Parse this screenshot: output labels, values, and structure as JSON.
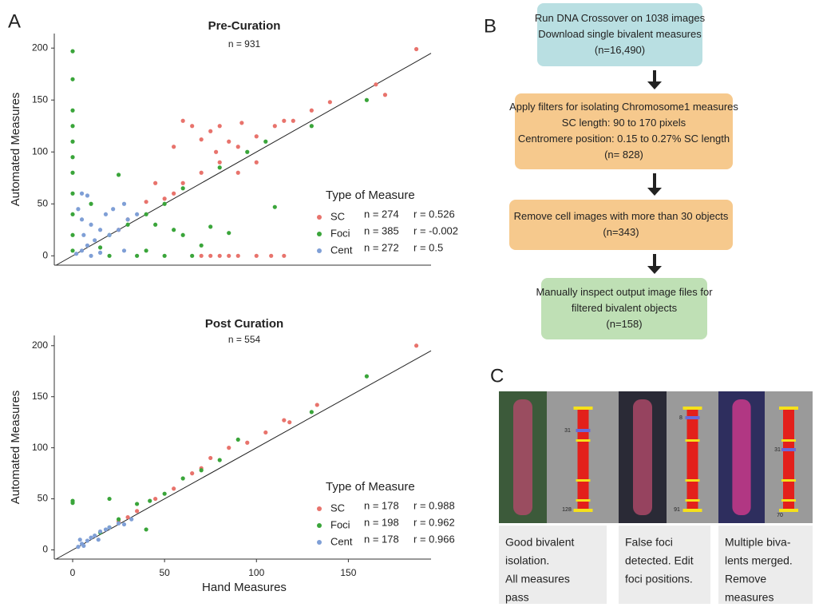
{
  "panel_labels": [
    "A",
    "B",
    "C"
  ],
  "chart_data": [
    {
      "type": "scatter",
      "title": "Pre-Curation",
      "subtitle": "n = 931",
      "ylabel": "Automated Measures",
      "xlim": [
        -10,
        195
      ],
      "ylim": [
        -9,
        214
      ],
      "yticks": [
        0,
        50,
        100,
        150,
        200
      ],
      "legend_title": "Type of Measure",
      "series": [
        {
          "name": "SC",
          "color": "#e8736c",
          "n_text": "n = 274",
          "r_text": "r = 0.526",
          "x": [
            187,
            165,
            170,
            140,
            130,
            120,
            115,
            110,
            100,
            90,
            80,
            70,
            60,
            55,
            50,
            65,
            75,
            60,
            80,
            92,
            70,
            78,
            55,
            85,
            90,
            100,
            75,
            80,
            85,
            90,
            100,
            108,
            115,
            70,
            45,
            40,
            25,
            30
          ],
          "values": [
            199,
            165,
            155,
            148,
            140,
            130,
            130,
            125,
            115,
            105,
            90,
            80,
            70,
            60,
            55,
            125,
            120,
            130,
            125,
            128,
            112,
            100,
            105,
            110,
            80,
            90,
            0,
            0,
            0,
            0,
            0,
            0,
            0,
            0,
            70,
            52,
            25,
            35
          ]
        },
        {
          "name": "Foci",
          "color": "#3aa53a",
          "n_text": "n = 385",
          "r_text": "r = -0.002",
          "x": [
            0,
            0,
            0,
            0,
            0,
            0,
            0,
            0,
            0,
            0,
            0,
            160,
            130,
            105,
            95,
            80,
            60,
            50,
            40,
            30,
            20,
            25,
            45,
            40,
            55,
            60,
            70,
            75,
            85,
            50,
            35,
            20,
            65,
            110,
            10,
            15
          ],
          "values": [
            197,
            170,
            140,
            125,
            110,
            95,
            80,
            60,
            40,
            20,
            5,
            150,
            125,
            110,
            100,
            85,
            65,
            50,
            40,
            30,
            20,
            78,
            30,
            5,
            25,
            20,
            10,
            28,
            22,
            0,
            0,
            0,
            0,
            47,
            50,
            8
          ]
        },
        {
          "name": "Cent",
          "color": "#7f9fd6",
          "n_text": "n = 272",
          "r_text": "r = 0.5",
          "x": [
            5,
            8,
            3,
            5,
            10,
            15,
            20,
            25,
            30,
            12,
            8,
            5,
            18,
            22,
            28,
            35,
            2,
            10,
            15,
            6,
            28
          ],
          "values": [
            60,
            58,
            45,
            35,
            30,
            25,
            20,
            25,
            35,
            15,
            10,
            5,
            40,
            45,
            50,
            40,
            2,
            0,
            3,
            20,
            5
          ]
        }
      ]
    },
    {
      "type": "scatter",
      "title": "Post Curation",
      "subtitle": "n = 554",
      "ylabel": "Automated Measures",
      "xlabel": "Hand Measures",
      "xlim": [
        -10,
        195
      ],
      "ylim": [
        -9,
        210
      ],
      "xticks": [
        0,
        50,
        100,
        150
      ],
      "yticks": [
        0,
        50,
        100,
        150,
        200
      ],
      "legend_title": "Type of Measure",
      "series": [
        {
          "name": "SC",
          "color": "#e8736c",
          "n_text": "n = 178",
          "r_text": "r = 0.988",
          "x": [
            187,
            133,
            115,
            118,
            105,
            95,
            85,
            75,
            65,
            55,
            45,
            35,
            25,
            30,
            70
          ],
          "values": [
            200,
            142,
            127,
            125,
            115,
            105,
            100,
            90,
            75,
            60,
            50,
            38,
            28,
            32,
            80
          ]
        },
        {
          "name": "Foci",
          "color": "#3aa53a",
          "n_text": "n = 198",
          "r_text": "r = 0.962",
          "x": [
            0,
            0,
            160,
            130,
            90,
            80,
            70,
            60,
            50,
            42,
            35,
            25,
            20,
            15,
            40,
            20
          ],
          "values": [
            48,
            46,
            170,
            135,
            108,
            88,
            78,
            70,
            55,
            48,
            45,
            30,
            22,
            17,
            20,
            50
          ]
        },
        {
          "name": "Cent",
          "color": "#7f9fd6",
          "n_text": "n = 178",
          "r_text": "r = 0.966",
          "x": [
            3,
            5,
            8,
            10,
            12,
            15,
            18,
            20,
            25,
            28,
            32,
            6,
            14,
            4
          ],
          "values": [
            3,
            6,
            9,
            12,
            14,
            18,
            20,
            22,
            26,
            25,
            30,
            4,
            10,
            10
          ]
        }
      ]
    }
  ],
  "flowchart": {
    "steps": [
      {
        "color": "#b9dfe2",
        "lines": [
          "Run DNA Crossover on 1038 images",
          "Download single bivalent measures",
          "(n=16,490)"
        ]
      },
      {
        "color": "#f6c98d",
        "lines": [
          "Apply filters for isolating Chromosome1 measures",
          "SC length: 90 to 170 pixels",
          "Centromere position: 0.15 to 0.27% SC length",
          "(n= 828)"
        ]
      },
      {
        "color": "#f6c98d",
        "lines": [
          "Remove cell images with more than 30 objects",
          "(n=343)"
        ]
      },
      {
        "color": "#bfe0b5",
        "lines": [
          "Manually inspect output image files for",
          "filtered bivalent objects",
          "(n=158)"
        ]
      }
    ]
  },
  "examples": [
    {
      "labels": [
        "31",
        "128"
      ],
      "caption": [
        "Good bivalent",
        "isolation.",
        "All measures",
        "pass"
      ]
    },
    {
      "labels": [
        "8",
        "91"
      ],
      "caption": [
        "False foci",
        "detected. Edit",
        "foci positions."
      ]
    },
    {
      "labels": [
        "31",
        "70"
      ],
      "caption": [
        "Multiple biva-",
        "lents merged.",
        "Remove",
        "measures"
      ]
    }
  ]
}
